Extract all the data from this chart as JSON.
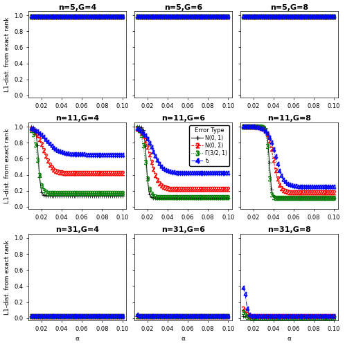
{
  "n_values": [
    5,
    11,
    31
  ],
  "G_values": [
    4,
    6,
    8
  ],
  "alpha_values": [
    0.01,
    0.012,
    0.014,
    0.016,
    0.018,
    0.02,
    0.022,
    0.024,
    0.026,
    0.028,
    0.03,
    0.032,
    0.034,
    0.036,
    0.038,
    0.04,
    0.042,
    0.044,
    0.046,
    0.048,
    0.05,
    0.052,
    0.054,
    0.056,
    0.058,
    0.06,
    0.062,
    0.064,
    0.066,
    0.068,
    0.07,
    0.072,
    0.074,
    0.076,
    0.078,
    0.08,
    0.082,
    0.084,
    0.086,
    0.088,
    0.09,
    0.092,
    0.094,
    0.096,
    0.098,
    0.1
  ],
  "series_colors": [
    "black",
    "red",
    "green",
    "blue"
  ],
  "series_linestyles": [
    "-",
    "--",
    ":",
    "-."
  ],
  "series_markers": [
    "+",
    "2",
    "3",
    "4"
  ],
  "ylabel": "L1-dist. from exact rank",
  "xlabel": "α",
  "legend_title": "Error Type",
  "legend_labels": [
    "N(0, 1)",
    "N(0, Σ)",
    "Γ(3/2, 1)",
    "t₂"
  ],
  "title_fontsize": 8,
  "axis_fontsize": 6.5,
  "tick_fontsize": 6
}
